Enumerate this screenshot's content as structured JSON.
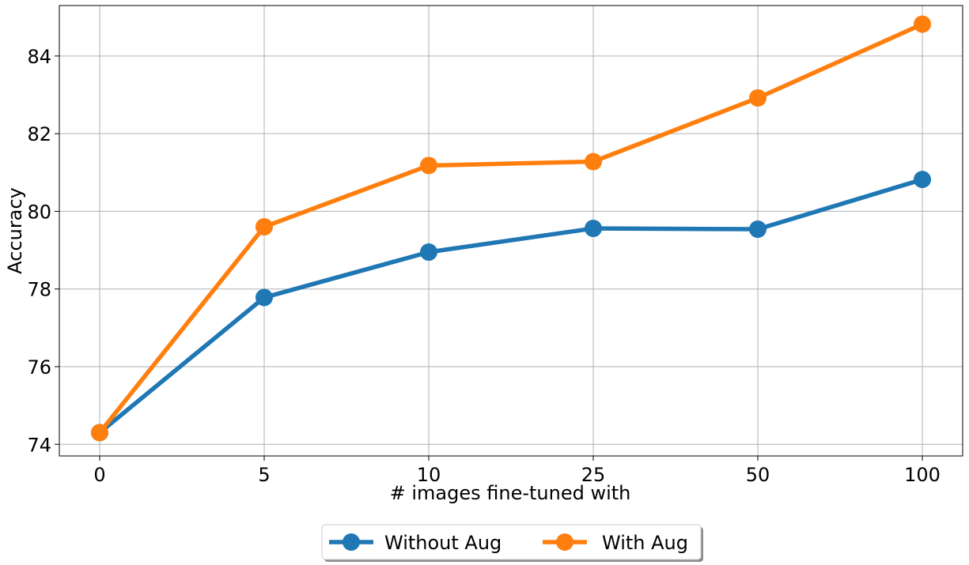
{
  "chart_data": {
    "type": "line",
    "categories": [
      "0",
      "5",
      "10",
      "25",
      "50",
      "100"
    ],
    "series": [
      {
        "name": "Without Aug",
        "color": "#1f77b4",
        "values": [
          74.3,
          77.78,
          78.95,
          79.56,
          79.54,
          80.82
        ]
      },
      {
        "name": "With Aug",
        "color": "#ff7f0e",
        "values": [
          74.3,
          79.6,
          81.18,
          81.28,
          82.92,
          84.82
        ]
      }
    ],
    "xlabel": "# images fine-tuned with",
    "ylabel": "Accuracy",
    "ylim": [
      73.7,
      85.3
    ],
    "yticks": [
      74,
      76,
      78,
      80,
      82,
      84
    ],
    "grid": true,
    "legend_position": "bottom-center"
  }
}
